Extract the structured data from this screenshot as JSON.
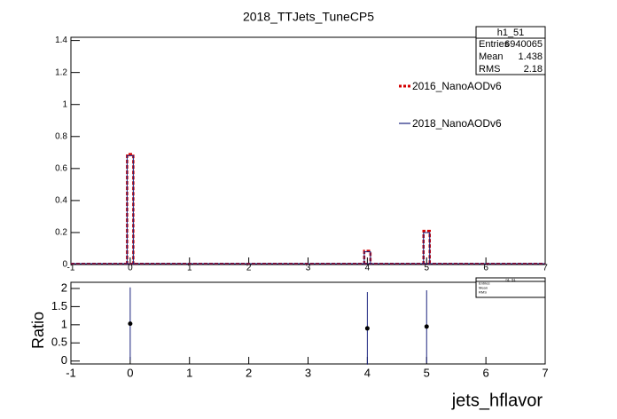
{
  "chart_data": [
    {
      "type": "hist",
      "title": "2018_TTJets_TuneCP5",
      "x": [
        0,
        4,
        5
      ],
      "series": [
        {
          "name": "2016_NanoAODv6",
          "color": "#d40000",
          "values": [
            0.69,
            0.085,
            0.21
          ]
        },
        {
          "name": "2018_NanoAODv6",
          "color": "#1a237e",
          "values": [
            0.68,
            0.08,
            0.2
          ]
        }
      ],
      "xlim": [
        -1,
        7
      ],
      "xticks": [
        -1,
        0,
        1,
        2,
        3,
        4,
        5,
        6,
        7
      ],
      "ylim": [
        0,
        1.42
      ],
      "yticks": [
        0,
        0.2,
        0.4,
        0.6,
        0.8,
        1,
        1.2,
        1.4
      ],
      "stats": {
        "title": "h1_51",
        "rows": [
          {
            "label": "Entries",
            "value": 6940065
          },
          {
            "label": "Mean",
            "value": 1.438
          },
          {
            "label": "RMS",
            "value": 2.18
          }
        ]
      }
    },
    {
      "type": "errorbar",
      "xlabel": "jets_hflavor",
      "ylabel": "Ratio",
      "x": [
        0,
        4,
        5
      ],
      "series": [
        {
          "color": "#000000",
          "errcolor": "#1a237e",
          "values": [
            1.03,
            0.9,
            0.95
          ],
          "errors": [
            1,
            1,
            1
          ]
        }
      ],
      "xlim": [
        -1,
        7
      ],
      "xticks": [
        -1,
        0,
        1,
        2,
        3,
        4,
        5,
        6,
        7
      ],
      "ylim": [
        -0.08,
        2.17
      ],
      "yticks": [
        0,
        0.5,
        1,
        1.5,
        2
      ],
      "stats": {
        "title": "h1_51",
        "rows": [
          {
            "label": "Entries"
          },
          {
            "label": "Mean"
          },
          {
            "label": "RMS"
          }
        ]
      }
    }
  ]
}
